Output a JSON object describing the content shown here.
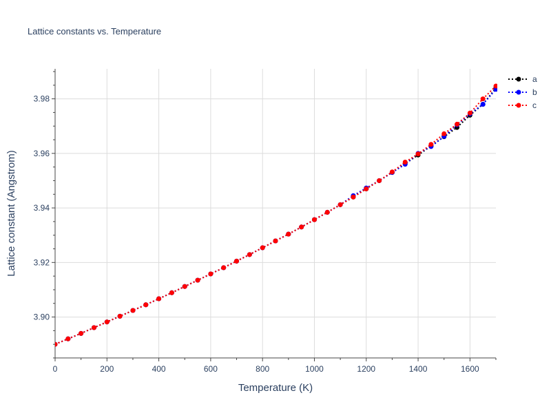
{
  "chart_data": {
    "type": "line",
    "title": "Lattice constants vs. Temperature",
    "xlabel": "Temperature (K)",
    "ylabel": "Lattice constant (Angstrom)",
    "xlim": [
      0,
      1700
    ],
    "ylim": [
      3.885,
      3.991
    ],
    "xticks": [
      0,
      200,
      400,
      600,
      800,
      1000,
      1200,
      1400,
      1600
    ],
    "yticks": [
      3.9,
      3.92,
      3.94,
      3.96,
      3.98
    ],
    "grid": true,
    "legend_position": "top-right",
    "line_style": "dotted",
    "x": [
      0,
      50,
      100,
      150,
      200,
      250,
      300,
      350,
      400,
      450,
      500,
      550,
      600,
      650,
      700,
      750,
      800,
      850,
      900,
      950,
      1000,
      1050,
      1100,
      1150,
      1200,
      1250,
      1300,
      1350,
      1400,
      1450,
      1500,
      1550,
      1600,
      1650,
      1700
    ],
    "series": [
      {
        "name": "a",
        "color": "#000000",
        "values": [
          3.89,
          3.892,
          3.894,
          3.8961,
          3.8982,
          3.9003,
          3.9024,
          3.9045,
          3.9067,
          3.9089,
          3.9112,
          3.9135,
          3.9158,
          3.9181,
          3.9205,
          3.9229,
          3.9254,
          3.9279,
          3.9304,
          3.933,
          3.9357,
          3.9384,
          3.9412,
          3.944,
          3.947,
          3.95,
          3.953,
          3.9562,
          3.9594,
          3.9627,
          3.9661,
          3.9695,
          3.974,
          3.978,
          3.984
        ]
      },
      {
        "name": "b",
        "color": "#0000ff",
        "values": [
          3.89,
          3.892,
          3.894,
          3.8961,
          3.8982,
          3.9003,
          3.9024,
          3.9045,
          3.9067,
          3.9089,
          3.9112,
          3.9135,
          3.9158,
          3.9181,
          3.9205,
          3.9229,
          3.9254,
          3.9279,
          3.9304,
          3.933,
          3.9357,
          3.9384,
          3.9412,
          3.9445,
          3.9473,
          3.95,
          3.953,
          3.956,
          3.96,
          3.9625,
          3.9662,
          3.9705,
          3.9745,
          3.978,
          3.9835
        ]
      },
      {
        "name": "c",
        "color": "#ff0000",
        "values": [
          3.89,
          3.892,
          3.894,
          3.8961,
          3.8982,
          3.9003,
          3.9024,
          3.9045,
          3.9067,
          3.9089,
          3.9112,
          3.9135,
          3.9158,
          3.9181,
          3.9205,
          3.9229,
          3.9254,
          3.9279,
          3.9304,
          3.933,
          3.9357,
          3.9384,
          3.9412,
          3.944,
          3.947,
          3.95,
          3.9532,
          3.9568,
          3.9598,
          3.9633,
          3.9672,
          3.9707,
          3.9748,
          3.98,
          3.9847
        ]
      }
    ]
  }
}
